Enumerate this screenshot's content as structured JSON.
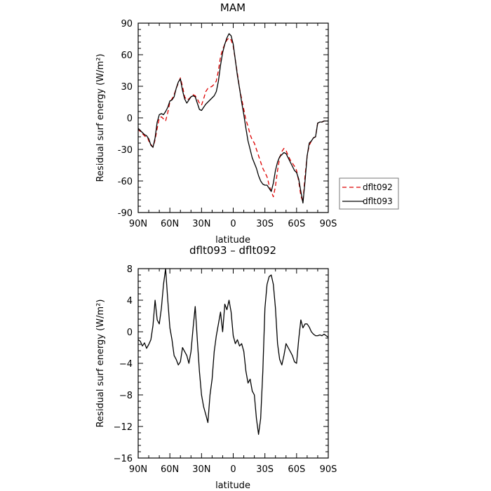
{
  "chart_data": [
    {
      "type": "line",
      "title": "MAM",
      "xlabel": "latitude",
      "ylabel": "Residual surf energy (W/m²)",
      "xlim": [
        90,
        -90
      ],
      "ylim": [
        -90,
        90
      ],
      "x_ticks": [
        90,
        60,
        30,
        0,
        -30,
        -60,
        -90
      ],
      "x_tick_labels": [
        "90N",
        "60N",
        "30N",
        "0",
        "30S",
        "60S",
        "90S"
      ],
      "y_ticks": [
        -90,
        -60,
        -30,
        0,
        30,
        60,
        90
      ],
      "y_tick_labels": [
        "-90",
        "-60",
        "-30",
        "0",
        "30",
        "60",
        "90"
      ],
      "legend": "right, outside",
      "series": [
        {
          "name": "dflt092",
          "color": "#dd0000",
          "dash": "dashed",
          "x": [
            90,
            88,
            85,
            83,
            81,
            80,
            78,
            76,
            74,
            72,
            70,
            68,
            66,
            64,
            62,
            60,
            58,
            56,
            54,
            52,
            50,
            48,
            46,
            44,
            42,
            40,
            38,
            36,
            34,
            32,
            30,
            28,
            26,
            24,
            22,
            20,
            18,
            16,
            14,
            12,
            10,
            8,
            6,
            4,
            2,
            0,
            -2,
            -4,
            -6,
            -8,
            -10,
            -12,
            -14,
            -16,
            -18,
            -20,
            -22,
            -24,
            -26,
            -28,
            -30,
            -32,
            -34,
            -36,
            -38,
            -40,
            -42,
            -44,
            -46,
            -48,
            -50,
            -52,
            -54,
            -56,
            -58,
            -60,
            -62,
            -64,
            -66,
            -68,
            -70,
            -72,
            -74,
            -76,
            -78,
            -80,
            -82,
            -84,
            -86,
            -88,
            -90
          ],
          "y": [
            -10,
            -13,
            -16,
            -18,
            -19,
            -22,
            -25,
            -28,
            -21,
            -10,
            0,
            1,
            -1,
            -3,
            5,
            15,
            18,
            22,
            28,
            33,
            38,
            30,
            20,
            17,
            18,
            20,
            22,
            21,
            18,
            14,
            12,
            18,
            25,
            28,
            29,
            30,
            32,
            35,
            45,
            58,
            65,
            70,
            74,
            76,
            74,
            68,
            55,
            42,
            28,
            18,
            8,
            -2,
            -8,
            -16,
            -21,
            -24,
            -30,
            -36,
            -42,
            -48,
            -52,
            -56,
            -64,
            -70,
            -75,
            -65,
            -50,
            -38,
            -32,
            -29,
            -31,
            -36,
            -40,
            -43,
            -46,
            -50,
            -60,
            -74,
            -80,
            -55,
            -36,
            -26,
            -22,
            -19,
            -18,
            -5,
            -4,
            -4,
            -3,
            -3,
            -3
          ]
        },
        {
          "name": "dflt093",
          "color": "#000000",
          "dash": "solid",
          "x": [
            90,
            88,
            86,
            84,
            82,
            80,
            78,
            76,
            74,
            72,
            70,
            68,
            66,
            64,
            62,
            60,
            58,
            56,
            54,
            52,
            50,
            48,
            46,
            44,
            42,
            40,
            38,
            36,
            34,
            32,
            30,
            28,
            26,
            24,
            22,
            20,
            18,
            16,
            14,
            12,
            10,
            8,
            6,
            4,
            2,
            0,
            -2,
            -4,
            -6,
            -8,
            -10,
            -12,
            -14,
            -16,
            -18,
            -20,
            -22,
            -24,
            -26,
            -28,
            -30,
            -32,
            -34,
            -36,
            -38,
            -40,
            -42,
            -44,
            -46,
            -48,
            -50,
            -52,
            -54,
            -56,
            -58,
            -60,
            -62,
            -64,
            -66,
            -68,
            -70,
            -72,
            -74,
            -76,
            -78,
            -80,
            -82,
            -84,
            -86,
            -88,
            -90
          ],
          "y": [
            -10,
            -12,
            -14,
            -16,
            -17,
            -20,
            -26,
            -28,
            -19,
            -4,
            3,
            4,
            3,
            6,
            10,
            16,
            17,
            20,
            28,
            34,
            37,
            26,
            18,
            14,
            17,
            20,
            21,
            20,
            14,
            8,
            7,
            10,
            13,
            15,
            17,
            19,
            21,
            25,
            35,
            50,
            62,
            70,
            76,
            80,
            78,
            70,
            55,
            40,
            28,
            15,
            3,
            -10,
            -22,
            -30,
            -38,
            -43,
            -48,
            -55,
            -60,
            -63,
            -64,
            -64,
            -67,
            -70,
            -62,
            -50,
            -42,
            -37,
            -35,
            -33,
            -34,
            -38,
            -42,
            -46,
            -50,
            -52,
            -58,
            -70,
            -81,
            -60,
            -36,
            -24,
            -22,
            -19,
            -18,
            -5,
            -4,
            -4,
            -3,
            -3,
            -3
          ]
        }
      ]
    },
    {
      "type": "line",
      "title": "dflt093 – dflt092",
      "xlabel": "latitude",
      "ylabel": "Residual surf energy (W/m²)",
      "xlim": [
        90,
        -90
      ],
      "ylim": [
        -16,
        8
      ],
      "x_ticks": [
        90,
        60,
        30,
        0,
        -30,
        -60,
        -90
      ],
      "x_tick_labels": [
        "90N",
        "60N",
        "30N",
        "0",
        "30S",
        "60S",
        "90S"
      ],
      "y_ticks": [
        -16,
        -12,
        -8,
        -4,
        0,
        4,
        8
      ],
      "y_tick_labels": [
        "−16",
        "−12",
        "−8",
        "−4",
        "0",
        "4",
        "8"
      ],
      "series": [
        {
          "color": "#000000",
          "dash": "solid",
          "x": [
            90,
            88,
            86,
            84,
            82,
            80,
            78,
            76,
            74,
            72,
            70,
            68,
            66,
            64,
            62,
            60,
            58,
            56,
            54,
            52,
            50,
            48,
            46,
            44,
            42,
            40,
            38,
            36,
            34,
            32,
            30,
            28,
            26,
            24,
            22,
            20,
            18,
            16,
            14,
            12,
            10,
            8,
            6,
            4,
            2,
            0,
            -2,
            -4,
            -6,
            -8,
            -10,
            -12,
            -14,
            -16,
            -18,
            -20,
            -22,
            -24,
            -26,
            -28,
            -30,
            -32,
            -34,
            -36,
            -38,
            -40,
            -42,
            -44,
            -46,
            -48,
            -50,
            -52,
            -54,
            -56,
            -58,
            -60,
            -62,
            -64,
            -66,
            -68,
            -70,
            -72,
            -74,
            -76,
            -78,
            -80,
            -82,
            -84,
            -86,
            -88,
            -90
          ],
          "y": [
            -1.0,
            -1.2,
            -1.8,
            -1.4,
            -2.1,
            -1.6,
            -1.0,
            0.8,
            4.0,
            1.5,
            1.0,
            3.0,
            6.0,
            8.0,
            4.0,
            0.5,
            -1.0,
            -3.0,
            -3.5,
            -4.2,
            -3.8,
            -2.0,
            -2.5,
            -3.0,
            -4.0,
            -2.5,
            0.5,
            3.2,
            -1.0,
            -5.0,
            -8.0,
            -9.5,
            -10.5,
            -11.5,
            -8.0,
            -6.0,
            -2.5,
            -0.5,
            1.0,
            2.5,
            0.0,
            3.5,
            2.8,
            4.0,
            2.5,
            -0.5,
            -1.5,
            -1.0,
            -1.8,
            -1.5,
            -2.5,
            -5.0,
            -6.5,
            -6.0,
            -7.5,
            -8.0,
            -11.0,
            -13.0,
            -11.0,
            -5.0,
            3.0,
            6.0,
            7.0,
            7.2,
            6.0,
            3.0,
            -1.5,
            -3.5,
            -4.2,
            -3.0,
            -1.5,
            -2.0,
            -2.5,
            -3.0,
            -3.8,
            -4.0,
            -1.0,
            1.5,
            0.5,
            1.0,
            1.0,
            0.6,
            0.0,
            -0.3,
            -0.5,
            -0.5,
            -0.4,
            -0.5,
            -0.3,
            -0.5,
            -0.7
          ]
        }
      ]
    }
  ],
  "legend_labels": [
    "dflt092",
    "dflt093"
  ]
}
